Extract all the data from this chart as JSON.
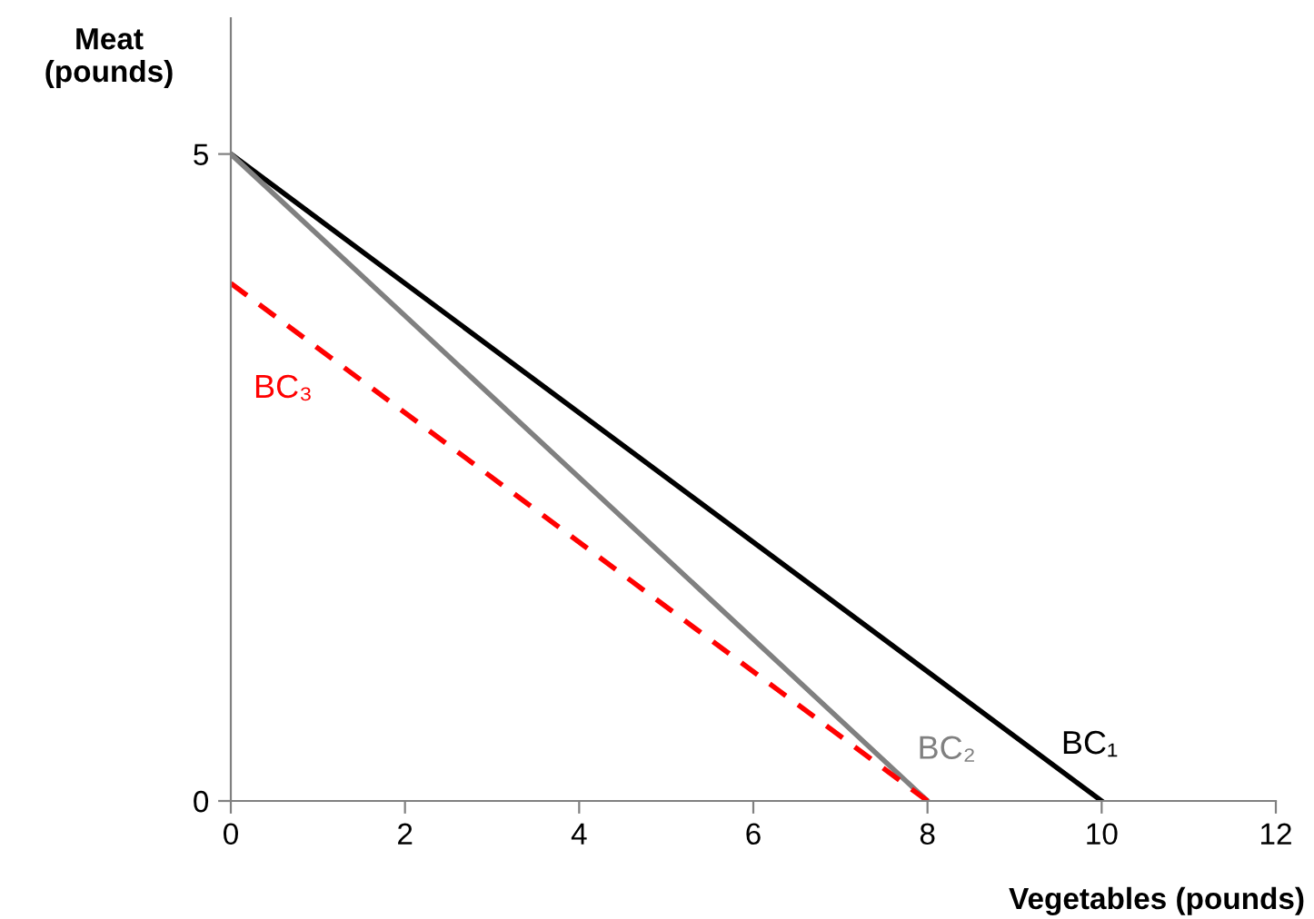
{
  "chart_data": {
    "type": "line",
    "xlabel": "Vegetables (pounds)",
    "ylabel": "Meat\n(pounds)",
    "series": [
      {
        "name": "BC₁",
        "x": [
          0,
          10
        ],
        "values": [
          5,
          0
        ],
        "color": "#000000",
        "line_style": "solid"
      },
      {
        "name": "BC₂",
        "x": [
          0,
          8
        ],
        "values": [
          5,
          0
        ],
        "color": "#808080",
        "line_style": "solid"
      },
      {
        "name": "BC₃",
        "x": [
          0,
          8
        ],
        "values": [
          4,
          0
        ],
        "color": "#ff0000",
        "line_style": "dashed"
      }
    ],
    "xlim": [
      0,
      12
    ],
    "ylim": [
      0,
      6.05
    ],
    "xticks": [
      0,
      2,
      4,
      6,
      8,
      10,
      12
    ],
    "yticks": [
      0,
      5
    ],
    "grid": false,
    "legend": false,
    "marker": "none"
  }
}
